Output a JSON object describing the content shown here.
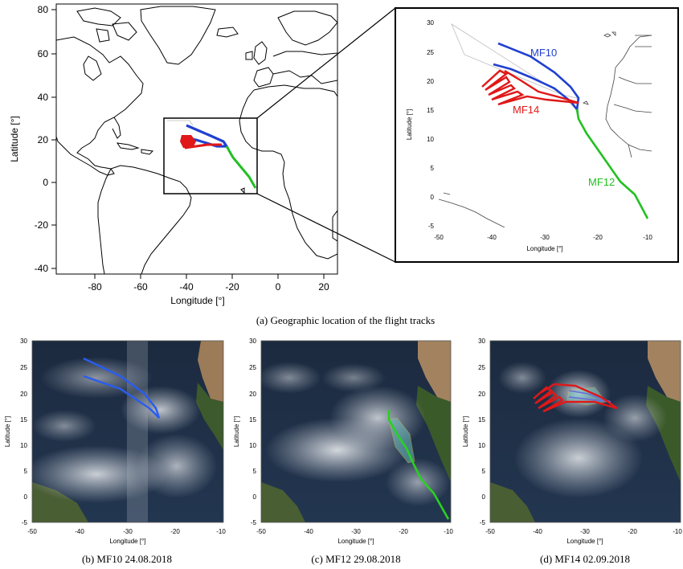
{
  "map_main": {
    "x_ticks": [
      "-80",
      "-60",
      "-40",
      "-20",
      "0",
      "20"
    ],
    "y_ticks": [
      "80",
      "60",
      "40",
      "20",
      "0",
      "-20",
      "-40"
    ],
    "xlabel": "Longitude [°]",
    "ylabel": "Latitude [°]",
    "extent": {
      "lon": [
        -96,
        26
      ],
      "lat": [
        -42,
        84
      ]
    }
  },
  "map_inset": {
    "x_ticks": [
      "-50",
      "-40",
      "-30",
      "-20",
      "-10"
    ],
    "y_ticks": [
      "30",
      "25",
      "20",
      "15",
      "10",
      "5",
      "0",
      "-5"
    ],
    "xlabel": "Longitude [°]",
    "ylabel": "Latitude [°]",
    "extent": {
      "lon": [
        -50,
        -10
      ],
      "lat": [
        -5,
        30
      ]
    }
  },
  "flights": [
    {
      "name": "MF10",
      "color": "#2040d0"
    },
    {
      "name": "MF12",
      "color": "#22c022"
    },
    {
      "name": "MF14",
      "color": "#e01818"
    }
  ],
  "captions": {
    "a": "(a) Geographic location of the flight tracks",
    "b": "(b) MF10 24.08.2018",
    "c": "(c) MF12 29.08.2018",
    "d": "(d) MF14 02.09.2018"
  },
  "satellite_panels": {
    "x_ticks": [
      "-50",
      "-40",
      "-30",
      "-20",
      "-10"
    ],
    "y_ticks": [
      "30",
      "25",
      "20",
      "15",
      "10",
      "5",
      "0",
      "-5"
    ],
    "xlabel": "Longitude [°]",
    "ylabel": "Latitude [°]"
  }
}
